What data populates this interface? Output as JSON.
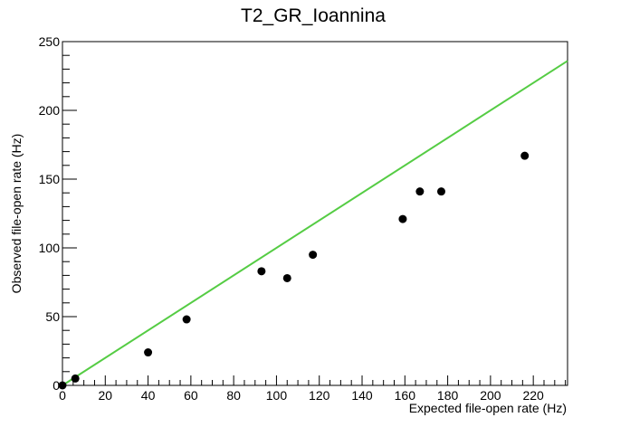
{
  "chart_data": {
    "type": "scatter",
    "title": "T2_GR_Ioannina",
    "xlabel": "Expected file-open rate (Hz)",
    "ylabel": "Observed file-open rate (Hz)",
    "xlim": [
      0,
      236
    ],
    "ylim": [
      0,
      250
    ],
    "xticks": [
      "0",
      "20",
      "40",
      "60",
      "80",
      "100",
      "120",
      "140",
      "160",
      "180",
      "200",
      "220"
    ],
    "yticks": [
      "0",
      "50",
      "100",
      "150",
      "200",
      "250"
    ],
    "grid": false,
    "colors": {
      "points": "#000000",
      "line": "#55cc44"
    },
    "series": [
      {
        "points": [
          {
            "x": 0,
            "y": 0
          },
          {
            "x": 6,
            "y": 5
          },
          {
            "x": 40,
            "y": 24
          },
          {
            "x": 58,
            "y": 48
          },
          {
            "x": 93,
            "y": 83
          },
          {
            "x": 105,
            "y": 78
          },
          {
            "x": 117,
            "y": 95
          },
          {
            "x": 159,
            "y": 121
          },
          {
            "x": 167,
            "y": 141
          },
          {
            "x": 177,
            "y": 141
          },
          {
            "x": 216,
            "y": 167
          }
        ]
      }
    ],
    "reference_line": {
      "from": [
        0,
        0
      ],
      "to": [
        236,
        236
      ]
    }
  }
}
